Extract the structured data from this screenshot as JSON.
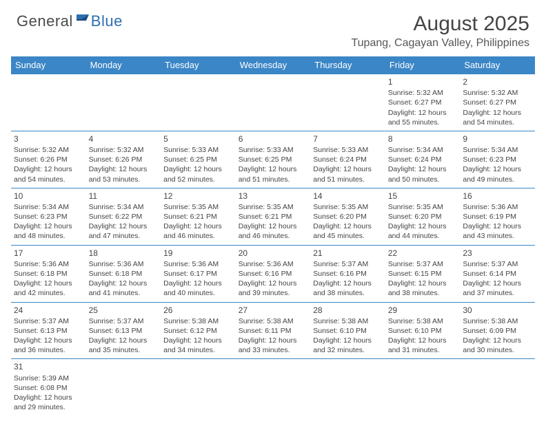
{
  "logo": {
    "general": "General",
    "blue": "Blue"
  },
  "header": {
    "month_title": "August 2025",
    "location": "Tupang, Cagayan Valley, Philippines"
  },
  "colors": {
    "header_bg": "#3b86c6",
    "header_text": "#ffffff",
    "text": "#444444",
    "logo_blue": "#2c6fb0"
  },
  "days_of_week": [
    "Sunday",
    "Monday",
    "Tuesday",
    "Wednesday",
    "Thursday",
    "Friday",
    "Saturday"
  ],
  "weeks": [
    [
      null,
      null,
      null,
      null,
      null,
      {
        "n": "1",
        "sr": "Sunrise: 5:32 AM",
        "ss": "Sunset: 6:27 PM",
        "dl1": "Daylight: 12 hours",
        "dl2": "and 55 minutes."
      },
      {
        "n": "2",
        "sr": "Sunrise: 5:32 AM",
        "ss": "Sunset: 6:27 PM",
        "dl1": "Daylight: 12 hours",
        "dl2": "and 54 minutes."
      }
    ],
    [
      {
        "n": "3",
        "sr": "Sunrise: 5:32 AM",
        "ss": "Sunset: 6:26 PM",
        "dl1": "Daylight: 12 hours",
        "dl2": "and 54 minutes."
      },
      {
        "n": "4",
        "sr": "Sunrise: 5:32 AM",
        "ss": "Sunset: 6:26 PM",
        "dl1": "Daylight: 12 hours",
        "dl2": "and 53 minutes."
      },
      {
        "n": "5",
        "sr": "Sunrise: 5:33 AM",
        "ss": "Sunset: 6:25 PM",
        "dl1": "Daylight: 12 hours",
        "dl2": "and 52 minutes."
      },
      {
        "n": "6",
        "sr": "Sunrise: 5:33 AM",
        "ss": "Sunset: 6:25 PM",
        "dl1": "Daylight: 12 hours",
        "dl2": "and 51 minutes."
      },
      {
        "n": "7",
        "sr": "Sunrise: 5:33 AM",
        "ss": "Sunset: 6:24 PM",
        "dl1": "Daylight: 12 hours",
        "dl2": "and 51 minutes."
      },
      {
        "n": "8",
        "sr": "Sunrise: 5:34 AM",
        "ss": "Sunset: 6:24 PM",
        "dl1": "Daylight: 12 hours",
        "dl2": "and 50 minutes."
      },
      {
        "n": "9",
        "sr": "Sunrise: 5:34 AM",
        "ss": "Sunset: 6:23 PM",
        "dl1": "Daylight: 12 hours",
        "dl2": "and 49 minutes."
      }
    ],
    [
      {
        "n": "10",
        "sr": "Sunrise: 5:34 AM",
        "ss": "Sunset: 6:23 PM",
        "dl1": "Daylight: 12 hours",
        "dl2": "and 48 minutes."
      },
      {
        "n": "11",
        "sr": "Sunrise: 5:34 AM",
        "ss": "Sunset: 6:22 PM",
        "dl1": "Daylight: 12 hours",
        "dl2": "and 47 minutes."
      },
      {
        "n": "12",
        "sr": "Sunrise: 5:35 AM",
        "ss": "Sunset: 6:21 PM",
        "dl1": "Daylight: 12 hours",
        "dl2": "and 46 minutes."
      },
      {
        "n": "13",
        "sr": "Sunrise: 5:35 AM",
        "ss": "Sunset: 6:21 PM",
        "dl1": "Daylight: 12 hours",
        "dl2": "and 46 minutes."
      },
      {
        "n": "14",
        "sr": "Sunrise: 5:35 AM",
        "ss": "Sunset: 6:20 PM",
        "dl1": "Daylight: 12 hours",
        "dl2": "and 45 minutes."
      },
      {
        "n": "15",
        "sr": "Sunrise: 5:35 AM",
        "ss": "Sunset: 6:20 PM",
        "dl1": "Daylight: 12 hours",
        "dl2": "and 44 minutes."
      },
      {
        "n": "16",
        "sr": "Sunrise: 5:36 AM",
        "ss": "Sunset: 6:19 PM",
        "dl1": "Daylight: 12 hours",
        "dl2": "and 43 minutes."
      }
    ],
    [
      {
        "n": "17",
        "sr": "Sunrise: 5:36 AM",
        "ss": "Sunset: 6:18 PM",
        "dl1": "Daylight: 12 hours",
        "dl2": "and 42 minutes."
      },
      {
        "n": "18",
        "sr": "Sunrise: 5:36 AM",
        "ss": "Sunset: 6:18 PM",
        "dl1": "Daylight: 12 hours",
        "dl2": "and 41 minutes."
      },
      {
        "n": "19",
        "sr": "Sunrise: 5:36 AM",
        "ss": "Sunset: 6:17 PM",
        "dl1": "Daylight: 12 hours",
        "dl2": "and 40 minutes."
      },
      {
        "n": "20",
        "sr": "Sunrise: 5:36 AM",
        "ss": "Sunset: 6:16 PM",
        "dl1": "Daylight: 12 hours",
        "dl2": "and 39 minutes."
      },
      {
        "n": "21",
        "sr": "Sunrise: 5:37 AM",
        "ss": "Sunset: 6:16 PM",
        "dl1": "Daylight: 12 hours",
        "dl2": "and 38 minutes."
      },
      {
        "n": "22",
        "sr": "Sunrise: 5:37 AM",
        "ss": "Sunset: 6:15 PM",
        "dl1": "Daylight: 12 hours",
        "dl2": "and 38 minutes."
      },
      {
        "n": "23",
        "sr": "Sunrise: 5:37 AM",
        "ss": "Sunset: 6:14 PM",
        "dl1": "Daylight: 12 hours",
        "dl2": "and 37 minutes."
      }
    ],
    [
      {
        "n": "24",
        "sr": "Sunrise: 5:37 AM",
        "ss": "Sunset: 6:13 PM",
        "dl1": "Daylight: 12 hours",
        "dl2": "and 36 minutes."
      },
      {
        "n": "25",
        "sr": "Sunrise: 5:37 AM",
        "ss": "Sunset: 6:13 PM",
        "dl1": "Daylight: 12 hours",
        "dl2": "and 35 minutes."
      },
      {
        "n": "26",
        "sr": "Sunrise: 5:38 AM",
        "ss": "Sunset: 6:12 PM",
        "dl1": "Daylight: 12 hours",
        "dl2": "and 34 minutes."
      },
      {
        "n": "27",
        "sr": "Sunrise: 5:38 AM",
        "ss": "Sunset: 6:11 PM",
        "dl1": "Daylight: 12 hours",
        "dl2": "and 33 minutes."
      },
      {
        "n": "28",
        "sr": "Sunrise: 5:38 AM",
        "ss": "Sunset: 6:10 PM",
        "dl1": "Daylight: 12 hours",
        "dl2": "and 32 minutes."
      },
      {
        "n": "29",
        "sr": "Sunrise: 5:38 AM",
        "ss": "Sunset: 6:10 PM",
        "dl1": "Daylight: 12 hours",
        "dl2": "and 31 minutes."
      },
      {
        "n": "30",
        "sr": "Sunrise: 5:38 AM",
        "ss": "Sunset: 6:09 PM",
        "dl1": "Daylight: 12 hours",
        "dl2": "and 30 minutes."
      }
    ],
    [
      {
        "n": "31",
        "sr": "Sunrise: 5:39 AM",
        "ss": "Sunset: 6:08 PM",
        "dl1": "Daylight: 12 hours",
        "dl2": "and 29 minutes."
      },
      null,
      null,
      null,
      null,
      null,
      null
    ]
  ]
}
